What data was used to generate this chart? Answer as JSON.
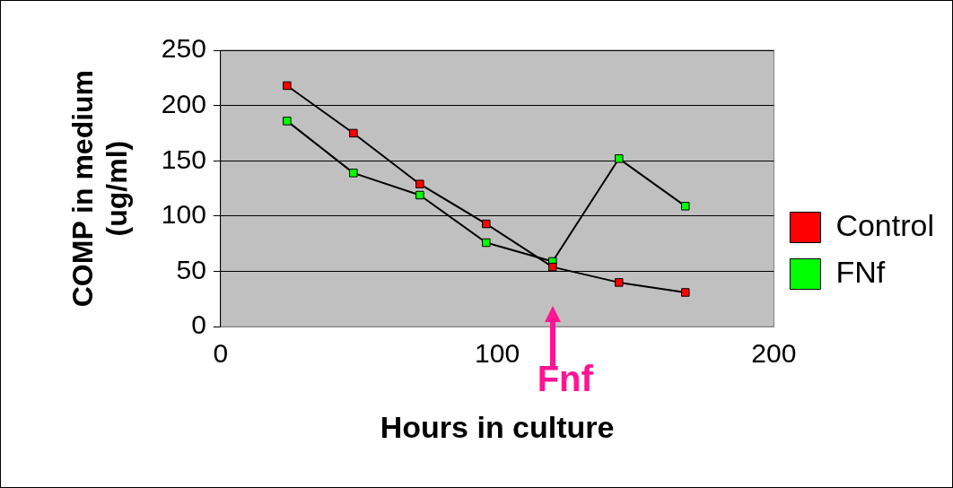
{
  "chart_data": {
    "type": "line",
    "xlabel": "Hours in culture",
    "ylabel": "COMP in medium\n(ug/ml)",
    "x": [
      24,
      48,
      72,
      96,
      120,
      144,
      168
    ],
    "series": [
      {
        "name": "Control",
        "color": "#ff0000",
        "values": [
          218,
          175,
          129,
          93,
          54,
          40,
          31
        ]
      },
      {
        "name": "FNf",
        "color": "#00ff00",
        "values": [
          186,
          139,
          119,
          76,
          59,
          152,
          109
        ]
      }
    ],
    "xlim": [
      0,
      200
    ],
    "xticks": [
      0,
      100,
      200
    ],
    "ylim": [
      0,
      250
    ],
    "yticks": [
      0,
      50,
      100,
      150,
      200,
      250
    ],
    "grid": "y",
    "legend": "right",
    "marker": "square",
    "line_style": "solid",
    "annotations": [
      "Fnf"
    ]
  }
}
